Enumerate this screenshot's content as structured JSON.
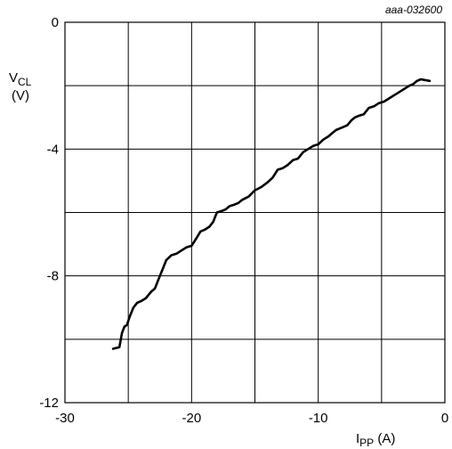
{
  "chart_data": {
    "type": "line",
    "figure_id": "aaa-032600",
    "ylabel": {
      "main": "V",
      "sub": "CL",
      "unit": "(V)"
    },
    "xlabel": {
      "main": "I",
      "sub": "PP",
      "unit": " (A)"
    },
    "xlim": [
      -30,
      0
    ],
    "ylim": [
      -12,
      0
    ],
    "x_ticks": [
      -30,
      -20,
      -10,
      0
    ],
    "y_ticks": [
      0,
      -4,
      -8,
      -12
    ],
    "x_tick_labels": [
      "-30",
      "-20",
      "-10",
      "0"
    ],
    "y_tick_labels": [
      "0",
      "-4",
      "-8",
      "-12"
    ],
    "grid": true,
    "series": [
      {
        "color": "#000000",
        "x": [
          -26.2,
          -25.7,
          -25.5,
          -25.3,
          -25.1,
          -24.9,
          -24.6,
          -24.3,
          -24.0,
          -23.6,
          -23.2,
          -22.9,
          -22.6,
          -22.3,
          -22.0,
          -21.6,
          -21.2,
          -20.8,
          -20.4,
          -20.0,
          -19.6,
          -19.3,
          -19.0,
          -18.6,
          -18.3,
          -18.0,
          -17.6,
          -17.3,
          -17.0,
          -16.6,
          -16.3,
          -16.0,
          -15.5,
          -15.0,
          -14.5,
          -14.0,
          -13.6,
          -13.2,
          -12.8,
          -12.4,
          -12.0,
          -11.6,
          -11.2,
          -10.8,
          -10.4,
          -10.0,
          -9.6,
          -9.2,
          -8.9,
          -8.6,
          -8.3,
          -8.0,
          -7.7,
          -7.4,
          -7.1,
          -6.8,
          -6.4,
          -6.0,
          -5.6,
          -5.2,
          -4.8,
          -4.4,
          -4.0,
          -3.6,
          -3.2,
          -2.8,
          -2.5,
          -2.2,
          -1.9,
          -1.6,
          -1.2
        ],
        "y": [
          -10.3,
          -10.25,
          -9.8,
          -9.6,
          -9.55,
          -9.3,
          -9.0,
          -8.85,
          -8.8,
          -8.7,
          -8.5,
          -8.4,
          -8.1,
          -7.8,
          -7.5,
          -7.35,
          -7.3,
          -7.2,
          -7.1,
          -7.05,
          -6.8,
          -6.6,
          -6.55,
          -6.45,
          -6.3,
          -6.0,
          -5.95,
          -5.9,
          -5.8,
          -5.75,
          -5.7,
          -5.6,
          -5.5,
          -5.3,
          -5.2,
          -5.05,
          -4.9,
          -4.65,
          -4.6,
          -4.5,
          -4.35,
          -4.3,
          -4.1,
          -4.0,
          -3.9,
          -3.85,
          -3.7,
          -3.6,
          -3.5,
          -3.4,
          -3.35,
          -3.3,
          -3.25,
          -3.1,
          -3.0,
          -2.95,
          -2.9,
          -2.7,
          -2.65,
          -2.55,
          -2.5,
          -2.4,
          -2.3,
          -2.2,
          -2.1,
          -2.0,
          -1.95,
          -1.85,
          -1.8,
          -1.82,
          -1.85
        ]
      }
    ]
  }
}
